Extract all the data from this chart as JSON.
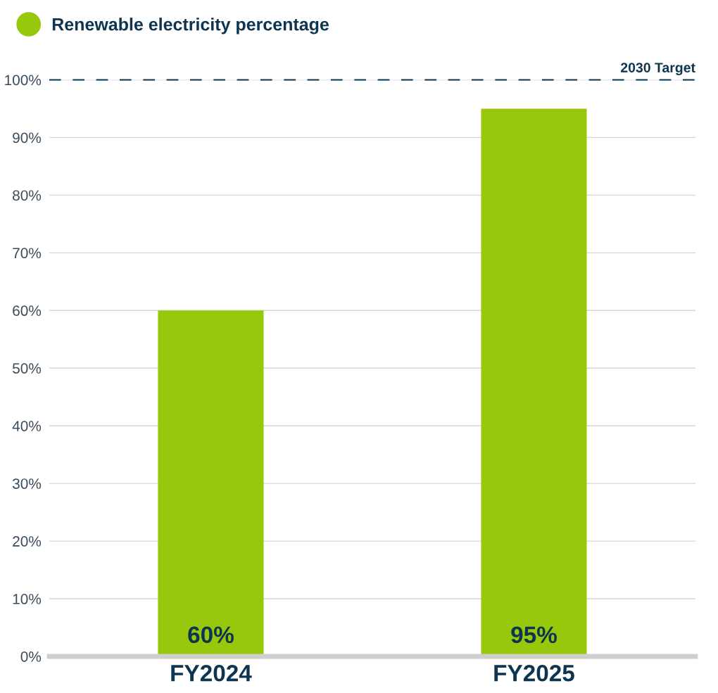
{
  "chart_data": {
    "type": "bar",
    "categories": [
      "FY2024",
      "FY2025"
    ],
    "series": [
      {
        "name": "Renewable electricity percentage",
        "color": "#97c80b",
        "values": [
          60,
          95
        ],
        "value_labels": [
          "60%",
          "95%"
        ]
      }
    ],
    "ylim": [
      0,
      100
    ],
    "yticks": [
      {
        "value": 0,
        "label": "0%"
      },
      {
        "value": 10,
        "label": "10%"
      },
      {
        "value": 20,
        "label": "20%"
      },
      {
        "value": 30,
        "label": "30%"
      },
      {
        "value": 40,
        "label": "40%"
      },
      {
        "value": 50,
        "label": "50%"
      },
      {
        "value": 60,
        "label": "60%"
      },
      {
        "value": 70,
        "label": "70%"
      },
      {
        "value": 80,
        "label": "80%"
      },
      {
        "value": 90,
        "label": "90%"
      },
      {
        "value": 100,
        "label": "100%"
      }
    ],
    "grid": "y",
    "legend": "top left",
    "ref_lines": [
      {
        "axis": "y",
        "value": 100,
        "label": "2030 Target",
        "color": "#0d3550",
        "line_style": "dashed"
      }
    ]
  }
}
